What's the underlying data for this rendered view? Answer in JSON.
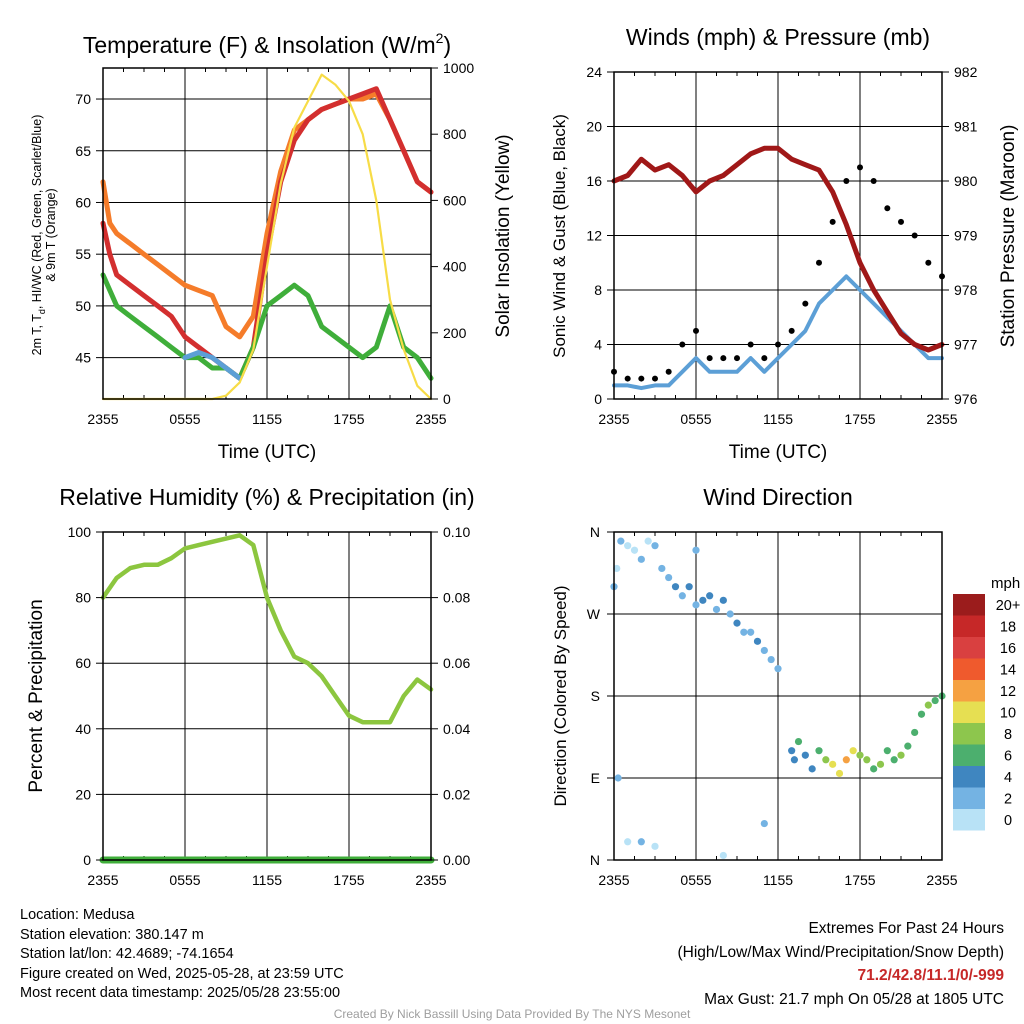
{
  "time_labels": [
    "2355",
    "0555",
    "1155",
    "1755",
    "2355"
  ],
  "colors": {
    "red": "#d32f2f",
    "green": "#3fae3a",
    "orange": "#f57c2a",
    "blue": "#5c9fd6",
    "yellow": "#f7dc47",
    "maroon": "#a01818",
    "gust": "#000000",
    "rh": "#8cc63f",
    "precip": "#3fae3a"
  },
  "chart_data": [
    {
      "type": "line",
      "title_main": "Temperature (F) & Insolation (W/m",
      "title_sup": "2",
      "title_end": ")",
      "xlabel": "Time (UTC)",
      "ylabel_lines": [
        "2m T, T",
        "d",
        ", HI/WC (Red, Green, Scarlet/Blue)",
        "& 9m T (Orange)"
      ],
      "y2label": "Solar Insolation (Yellow)",
      "ylim": [
        41,
        73
      ],
      "yticks": [
        45,
        50,
        55,
        60,
        65,
        70
      ],
      "y2lim": [
        0,
        1000
      ],
      "y2ticks": [
        0,
        200,
        400,
        600,
        800,
        1000
      ],
      "x_hours": [
        0,
        6,
        12,
        18,
        24
      ],
      "series": [
        {
          "key": "orange",
          "x": [
            0,
            0.5,
            1,
            2,
            3,
            4,
            5,
            6,
            7,
            8,
            9,
            10,
            11,
            12,
            13,
            14,
            15,
            16,
            17,
            18,
            19,
            20,
            21,
            22,
            23,
            24
          ],
          "values": [
            62,
            58,
            57,
            56,
            55,
            54,
            53,
            52,
            51.5,
            51,
            48,
            47,
            49,
            57,
            63,
            67,
            68,
            69,
            69.5,
            70,
            70,
            70.5,
            68,
            65,
            62,
            61
          ]
        },
        {
          "key": "red",
          "x": [
            0,
            0.5,
            1,
            2,
            3,
            4,
            5,
            6,
            7,
            8,
            9,
            10,
            11,
            12,
            13,
            14,
            15,
            16,
            17,
            18,
            19,
            20,
            21,
            22,
            23,
            24
          ],
          "values": [
            58,
            55,
            53,
            52,
            51,
            50,
            49,
            47,
            46,
            45,
            44,
            43,
            46,
            55,
            62,
            66,
            68,
            69,
            69.5,
            70,
            70.5,
            71,
            68,
            65,
            62,
            61
          ]
        },
        {
          "key": "green",
          "x": [
            0,
            1,
            2,
            3,
            4,
            5,
            6,
            7,
            8,
            9,
            10,
            11,
            12,
            13,
            14,
            15,
            16,
            17,
            18,
            19,
            20,
            21,
            22,
            23,
            24
          ],
          "values": [
            53,
            50,
            49,
            48,
            47,
            46,
            45,
            45,
            44,
            44,
            43,
            46,
            50,
            51,
            52,
            51,
            48,
            47,
            46,
            45,
            46,
            50,
            46,
            45,
            43
          ]
        },
        {
          "key": "blue",
          "x": [
            6,
            7,
            8,
            9,
            10
          ],
          "values": [
            45,
            45.5,
            45,
            44,
            43
          ]
        },
        {
          "key": "yellow",
          "axis": "y2",
          "x": [
            0,
            8,
            9,
            10,
            11,
            12,
            13,
            14,
            15,
            16,
            17,
            18,
            19,
            20,
            21,
            22,
            23,
            24
          ],
          "values": [
            0,
            0,
            10,
            50,
            150,
            400,
            650,
            820,
            900,
            980,
            950,
            900,
            800,
            600,
            300,
            150,
            40,
            0
          ]
        }
      ]
    },
    {
      "type": "scatter",
      "title": "Winds (mph) & Pressure (mb)",
      "xlabel": "Time (UTC)",
      "ylabel": "Sonic Wind & Gust (Blue, Black)",
      "y2label": "Station Pressure (Maroon)",
      "ylim": [
        0,
        24
      ],
      "yticks": [
        0,
        4,
        8,
        12,
        16,
        20,
        24
      ],
      "y2lim": [
        976,
        982
      ],
      "y2ticks": [
        976,
        977,
        978,
        979,
        980,
        981,
        982
      ],
      "x_hours": [
        0,
        6,
        12,
        18,
        24
      ],
      "series": [
        {
          "key": "blue",
          "x": [
            0,
            1,
            2,
            3,
            4,
            5,
            6,
            7,
            8,
            9,
            10,
            11,
            12,
            13,
            14,
            15,
            16,
            17,
            18,
            19,
            20,
            21,
            22,
            23,
            24
          ],
          "values": [
            1,
            1,
            0.8,
            1,
            1,
            2,
            3,
            2,
            2,
            2,
            3,
            2,
            3,
            4,
            5,
            7,
            8,
            9,
            8,
            7,
            6,
            5,
            4,
            3,
            3
          ]
        },
        {
          "key": "gust",
          "x": [
            0,
            1,
            2,
            3,
            4,
            5,
            6,
            7,
            8,
            9,
            10,
            11,
            12,
            13,
            14,
            15,
            16,
            17,
            18,
            19,
            20,
            21,
            22,
            23,
            24
          ],
          "values": [
            2,
            1.5,
            1.5,
            1.5,
            2,
            4,
            5,
            3,
            3,
            3,
            4,
            3,
            4,
            5,
            7,
            10,
            13,
            16,
            17,
            16,
            14,
            13,
            12,
            10,
            9
          ]
        },
        {
          "key": "maroon",
          "axis": "y2",
          "x": [
            0,
            1,
            2,
            3,
            4,
            5,
            6,
            7,
            8,
            9,
            10,
            11,
            12,
            13,
            14,
            15,
            16,
            17,
            18,
            19,
            20,
            21,
            22,
            23,
            24
          ],
          "values": [
            980,
            980.1,
            980.4,
            980.2,
            980.3,
            980.1,
            979.8,
            980,
            980.1,
            980.3,
            980.5,
            980.6,
            980.6,
            980.4,
            980.3,
            980.2,
            979.8,
            979.2,
            978.5,
            978,
            977.6,
            977.2,
            977,
            976.9,
            977
          ]
        }
      ]
    },
    {
      "type": "line",
      "title": "Relative Humidity (%) & Precipitation (in)",
      "ylabel": "Percent & Precipitation",
      "ylim": [
        0,
        100
      ],
      "yticks": [
        0,
        20,
        40,
        60,
        80,
        100
      ],
      "y2lim": [
        0,
        0.1
      ],
      "y2ticks": [
        "0.00",
        "0.02",
        "0.04",
        "0.06",
        "0.08",
        "0.10"
      ],
      "x_hours": [
        0,
        6,
        12,
        18,
        24
      ],
      "series": [
        {
          "key": "rh",
          "x": [
            0,
            1,
            2,
            3,
            4,
            5,
            6,
            7,
            8,
            9,
            10,
            11,
            12,
            13,
            14,
            15,
            16,
            17,
            18,
            19,
            20,
            21,
            22,
            23,
            24
          ],
          "values": [
            80,
            86,
            89,
            90,
            90,
            92,
            95,
            96,
            97,
            98,
            99,
            96,
            80,
            70,
            62,
            60,
            56,
            50,
            44,
            42,
            42,
            42,
            50,
            55,
            52
          ]
        },
        {
          "key": "precip",
          "axis": "y2",
          "x": [
            0,
            24
          ],
          "values": [
            0,
            0
          ]
        }
      ]
    },
    {
      "type": "scatter",
      "title": "Wind Direction",
      "ylabel": "Direction (Colored By Speed)",
      "yticks": [
        "N",
        "E",
        "S",
        "W",
        "N"
      ],
      "x_hours": [
        0,
        6,
        12,
        18,
        24
      ],
      "legend_title": "mph",
      "legend_labels": [
        "20+",
        "18",
        "16",
        "14",
        "12",
        "10",
        "8",
        "6",
        "4",
        "2",
        "0"
      ],
      "legend_colors": [
        "#9b1c1c",
        "#c62828",
        "#d94040",
        "#ef5a2d",
        "#f5a142",
        "#e6df52",
        "#8dc64d",
        "#4caf6e",
        "#3f86c0",
        "#74b3e3",
        "#b8e2f6"
      ],
      "x": [
        0,
        0.2,
        0.5,
        1,
        1.5,
        2,
        2.5,
        3,
        3.5,
        4,
        4.5,
        5,
        5.5,
        6,
        6.5,
        7,
        7.5,
        8,
        8.5,
        9,
        9.5,
        10,
        10.5,
        11,
        11.5,
        12,
        0.3,
        1,
        2,
        3,
        6,
        8,
        11,
        13,
        13.2,
        13.5,
        14,
        14.5,
        15,
        15.5,
        16,
        16.5,
        17,
        17.5,
        18,
        18.5,
        19,
        19.5,
        20,
        20.5,
        21,
        21.5,
        22,
        22.5,
        23,
        23.5,
        24
      ],
      "directions": [
        300,
        320,
        350,
        345,
        340,
        330,
        350,
        345,
        320,
        310,
        300,
        290,
        300,
        280,
        285,
        290,
        275,
        285,
        270,
        260,
        250,
        250,
        240,
        230,
        220,
        210,
        90,
        20,
        20,
        15,
        340,
        5,
        40,
        120,
        110,
        130,
        115,
        100,
        120,
        110,
        105,
        95,
        110,
        120,
        115,
        110,
        100,
        105,
        120,
        110,
        115,
        125,
        140,
        160,
        170,
        175,
        180
      ],
      "speeds": [
        1,
        0,
        1,
        0,
        0,
        1,
        0,
        1,
        2,
        1,
        3,
        2,
        3,
        2,
        4,
        3,
        2,
        3,
        2,
        3,
        2,
        1,
        3,
        2,
        1,
        2,
        1,
        0,
        1,
        0,
        1,
        0,
        2,
        3,
        4,
        5,
        3,
        4,
        6,
        8,
        9,
        10,
        11,
        9,
        8,
        7,
        6,
        8,
        6,
        5,
        7,
        6,
        5,
        6,
        7,
        5,
        6
      ]
    }
  ],
  "info": {
    "location": "Location: Medusa",
    "elevation": "Station elevation: 380.147 m",
    "latlon": "Station lat/lon: 42.4689; -74.1654",
    "created": "Figure created on Wed, 2025-05-28, at 23:59 UTC",
    "recent": "Most recent data timestamp: 2025/05/28 23:55:00"
  },
  "extremes": {
    "title": "Extremes For Past 24 Hours",
    "subtitle": "(High/Low/Max Wind/Precipitation/Snow Depth)",
    "values": "71.2/42.8/11.1/0/-999",
    "gust": "Max Gust: 21.7 mph On 05/28 at 1805 UTC"
  },
  "credit": "Created By Nick Bassill Using Data Provided By The NYS Mesonet"
}
